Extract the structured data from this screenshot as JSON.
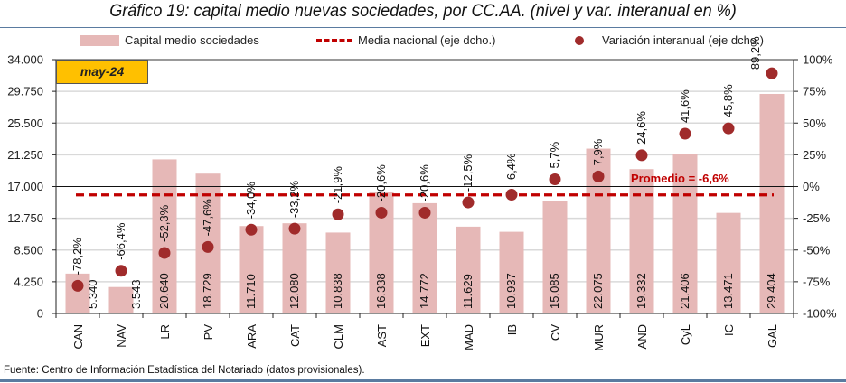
{
  "title": "Gráfico 19: capital medio nuevas sociedades, por CC.AA. (nivel y var. interanual en %)",
  "source": "Fuente: Centro de Información Estadística del Notariado (datos provisionales).",
  "date_badge": "may-24",
  "legend": {
    "bars": "Capital medio sociedades",
    "line": "Media nacional (eje dcho.)",
    "dots": "Variación interanual (eje dcho.)"
  },
  "average_label": "Promedio = -6,6%",
  "colors": {
    "bar": "#e6b8b7",
    "line": "#c00000",
    "dot": "#a02b2b",
    "badge": "#ffc000",
    "average_text": "#c00000"
  },
  "chart_data": {
    "type": "bar",
    "title": "Gráfico 19: capital medio nuevas sociedades, por CC.AA. (nivel y var. interanual en %)",
    "categories": [
      "CAN",
      "NAV",
      "LR",
      "PV",
      "ARA",
      "CAT",
      "CLM",
      "AST",
      "EXT",
      "MAD",
      "IB",
      "CV",
      "MUR",
      "AND",
      "CyL",
      "IC",
      "GAL"
    ],
    "series": [
      {
        "name": "Capital medio sociedades",
        "type": "bar",
        "axis": "left",
        "values": [
          5340,
          3543,
          20640,
          18729,
          11710,
          12080,
          10838,
          16338,
          14772,
          11629,
          10937,
          15085,
          22075,
          19332,
          21406,
          13471,
          29404
        ],
        "labels": [
          "5.340",
          "3.543",
          "20.640",
          "18.729",
          "11.710",
          "12.080",
          "10.838",
          "16.338",
          "14.772",
          "11.629",
          "10.937",
          "15.085",
          "22.075",
          "19.332",
          "21.406",
          "13.471",
          "29.404"
        ]
      },
      {
        "name": "Variación interanual (eje dcho.)",
        "type": "scatter",
        "axis": "right",
        "values": [
          -78.2,
          -66.4,
          -52.3,
          -47.6,
          -34.0,
          -33.2,
          -21.9,
          -20.6,
          -20.6,
          -12.5,
          -6.4,
          5.7,
          7.9,
          24.6,
          41.6,
          45.8,
          89.2
        ],
        "labels": [
          "-78,2%",
          "-66,4%",
          "-52,3%",
          "-47,6%",
          "-34,0%",
          "-33,2%",
          "-21,9%",
          "-20,6%",
          "-20,6%",
          "-12,5%",
          "-6,4%",
          "5,7%",
          "7,9%",
          "24,6%",
          "41,6%",
          "45,8%",
          "89,2%"
        ]
      },
      {
        "name": "Media nacional (eje dcho.)",
        "type": "line",
        "axis": "right",
        "value": -6.6
      }
    ],
    "left_axis": {
      "ylim": [
        0,
        34000
      ],
      "ticks": [
        "0",
        "4.250",
        "8.500",
        "12.750",
        "17.000",
        "21.250",
        "25.500",
        "29.750",
        "34.000"
      ]
    },
    "right_axis": {
      "ylim": [
        -100,
        100
      ],
      "ticks": [
        "-100%",
        "-75%",
        "-50%",
        "-25%",
        "0%",
        "25%",
        "50%",
        "75%",
        "100%"
      ]
    },
    "grid": true,
    "legend": "top"
  }
}
